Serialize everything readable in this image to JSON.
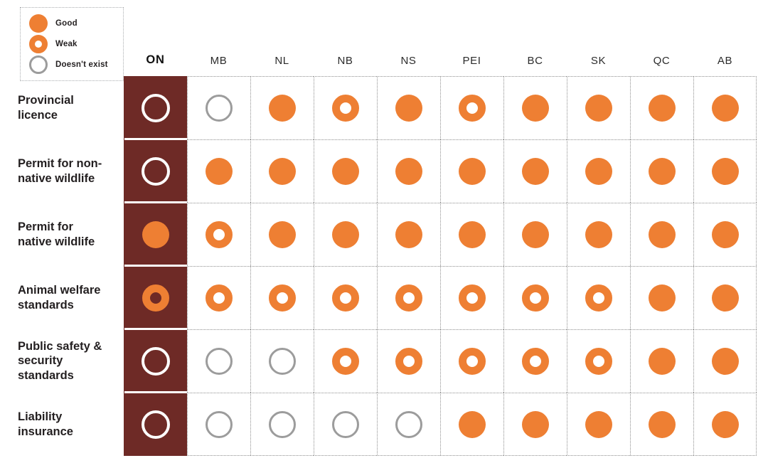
{
  "colors": {
    "good_orange": "#EE7F33",
    "highlight_maroon": "#6E2A26",
    "doesnt_exist_gray": "#9C9C9C",
    "grid_dot_gray": "#8E8E8E",
    "text_dark": "#231F20"
  },
  "legend": {
    "items": [
      {
        "type": "good",
        "label": "Good",
        "icon": "filled-circle-icon"
      },
      {
        "type": "weak",
        "label": "Weak",
        "icon": "thick-ring-icon"
      },
      {
        "type": "none",
        "label": "Doesn't exist",
        "icon": "thin-ring-icon"
      }
    ]
  },
  "chart_data": {
    "type": "heatmap",
    "subtype": "status-dot-matrix",
    "columns": [
      "ON",
      "MB",
      "NL",
      "NB",
      "NS",
      "PEI",
      "BC",
      "SK",
      "QC",
      "AB"
    ],
    "highlighted_column": "ON",
    "value_legend": {
      "good": "Good",
      "weak": "Weak",
      "none": "Doesn't exist"
    },
    "rows": [
      {
        "label": "Provincial licence",
        "values": [
          "none",
          "none",
          "good",
          "weak",
          "good",
          "weak",
          "good",
          "good",
          "good",
          "good"
        ]
      },
      {
        "label": "Permit for non-native wildlife",
        "values": [
          "none",
          "good",
          "good",
          "good",
          "good",
          "good",
          "good",
          "good",
          "good",
          "good"
        ]
      },
      {
        "label": "Permit for native wildlife",
        "values": [
          "good",
          "weak",
          "good",
          "good",
          "good",
          "good",
          "good",
          "good",
          "good",
          "good"
        ]
      },
      {
        "label": "Animal welfare standards",
        "values": [
          "weak",
          "weak",
          "weak",
          "weak",
          "weak",
          "weak",
          "weak",
          "weak",
          "good",
          "good"
        ]
      },
      {
        "label": "Public safety & security standards",
        "values": [
          "none",
          "none",
          "none",
          "weak",
          "weak",
          "weak",
          "weak",
          "weak",
          "good",
          "good"
        ]
      },
      {
        "label": "Liability insurance",
        "values": [
          "none",
          "none",
          "none",
          "none",
          "none",
          "good",
          "good",
          "good",
          "good",
          "good"
        ]
      }
    ]
  }
}
